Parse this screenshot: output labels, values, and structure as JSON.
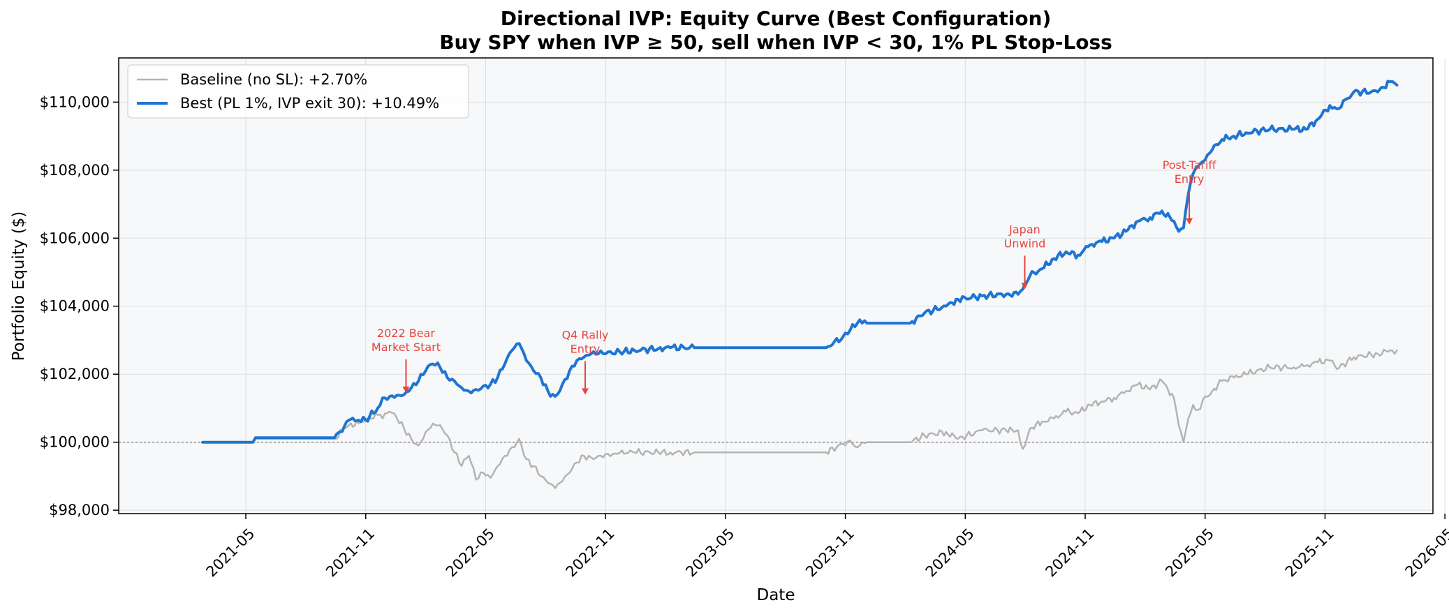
{
  "chart_data": {
    "type": "line",
    "title": "Directional IVP: Equity Curve (Best Configuration)",
    "subtitle": "Buy SPY when IVP ≥ 50, sell when IVP < 30, 1% PL Stop-Loss",
    "xlabel": "Date",
    "ylabel": "Portfolio Equity ($)",
    "ylim": [
      97900,
      111300
    ],
    "xlim": [
      2020.8,
      2026.28
    ],
    "grid": true,
    "legend_position": "upper-left",
    "reference_line": {
      "y": 100000,
      "style": "dashed",
      "color": "#555555"
    },
    "y_ticks": [
      {
        "value": 98000,
        "label": "$98,000"
      },
      {
        "value": 100000,
        "label": "$100,000"
      },
      {
        "value": 102000,
        "label": "$102,000"
      },
      {
        "value": 104000,
        "label": "$104,000"
      },
      {
        "value": 106000,
        "label": "$106,000"
      },
      {
        "value": 108000,
        "label": "$108,000"
      },
      {
        "value": 110000,
        "label": "$110,000"
      }
    ],
    "x_ticks": [
      {
        "value": 2021.33,
        "label": "2021-05"
      },
      {
        "value": 2021.83,
        "label": "2021-11"
      },
      {
        "value": 2022.33,
        "label": "2022-05"
      },
      {
        "value": 2022.83,
        "label": "2022-11"
      },
      {
        "value": 2023.33,
        "label": "2023-05"
      },
      {
        "value": 2023.83,
        "label": "2023-11"
      },
      {
        "value": 2024.33,
        "label": "2024-05"
      },
      {
        "value": 2024.83,
        "label": "2024-11"
      },
      {
        "value": 2025.33,
        "label": "2025-05"
      },
      {
        "value": 2025.83,
        "label": "2025-11"
      },
      {
        "value": 2026.33,
        "label": "2026-05"
      }
    ],
    "series": [
      {
        "name": "Baseline (no SL): +2.70%",
        "color": "#b3b3b3",
        "width": 2.5,
        "x": [
          2021.15,
          2021.36,
          2021.37,
          2021.7,
          2021.74,
          2021.76,
          2021.8,
          2021.83,
          2021.88,
          2021.9,
          2021.93,
          2021.96,
          2021.99,
          2022.02,
          2022.05,
          2022.08,
          2022.11,
          2022.14,
          2022.17,
          2022.2,
          2022.23,
          2022.26,
          2022.29,
          2022.32,
          2022.35,
          2022.38,
          2022.41,
          2022.44,
          2022.47,
          2022.5,
          2022.53,
          2022.56,
          2022.59,
          2022.62,
          2022.65,
          2022.68,
          2022.71,
          2022.74,
          2022.77,
          2022.8,
          2022.83,
          2022.86,
          2022.89,
          2022.95,
          2023.05,
          2023.1,
          2023.2,
          2023.5,
          2023.75,
          2023.82,
          2023.85,
          2023.88,
          2023.9,
          2023.92,
          2024.1,
          2024.16,
          2024.25,
          2024.3,
          2024.4,
          2024.5,
          2024.55,
          2024.57,
          2024.6,
          2024.65,
          2024.7,
          2024.75,
          2024.8,
          2024.85,
          2024.9,
          2024.95,
          2025.0,
          2025.05,
          2025.1,
          2025.15,
          2025.2,
          2025.22,
          2025.24,
          2025.26,
          2025.28,
          2025.3,
          2025.33,
          2025.36,
          2025.4,
          2025.45,
          2025.5,
          2025.6,
          2025.7,
          2025.75,
          2025.8,
          2025.85,
          2025.88,
          2025.95,
          2026.05,
          2026.1,
          2026.13
        ],
        "y": [
          100000,
          100000,
          100100,
          100100,
          100400,
          100500,
          100550,
          100650,
          100800,
          100700,
          100900,
          100700,
          100400,
          100100,
          99900,
          100300,
          100550,
          100500,
          100200,
          99700,
          99300,
          99600,
          98900,
          99100,
          98950,
          99300,
          99600,
          99850,
          100100,
          99500,
          99300,
          99000,
          98800,
          98650,
          98850,
          99100,
          99400,
          99600,
          99550,
          99600,
          99650,
          99650,
          99700,
          99700,
          99700,
          99700,
          99700,
          99700,
          99700,
          99950,
          100050,
          99850,
          100000,
          100000,
          100000,
          100200,
          100300,
          100100,
          100350,
          100350,
          100350,
          99800,
          100400,
          100600,
          100700,
          100900,
          100850,
          101100,
          101200,
          101300,
          101500,
          101700,
          101550,
          101800,
          101300,
          100500,
          100000,
          100700,
          101100,
          100950,
          101350,
          101500,
          101800,
          101900,
          102000,
          102200,
          102200,
          102250,
          102350,
          102400,
          102150,
          102500,
          102600,
          102700,
          102700
        ]
      },
      {
        "name": "Best (PL 1%, IVP exit 30): +10.49%",
        "color": "#1f75d1",
        "width": 4,
        "x": [
          2021.15,
          2021.36,
          2021.37,
          2021.7,
          2021.74,
          2021.76,
          2021.8,
          2021.83,
          2021.88,
          2021.9,
          2021.93,
          2021.96,
          2021.99,
          2022.02,
          2022.05,
          2022.08,
          2022.11,
          2022.14,
          2022.17,
          2022.2,
          2022.23,
          2022.26,
          2022.29,
          2022.32,
          2022.35,
          2022.38,
          2022.41,
          2022.44,
          2022.47,
          2022.5,
          2022.53,
          2022.56,
          2022.59,
          2022.62,
          2022.65,
          2022.68,
          2022.71,
          2022.74,
          2022.77,
          2022.8,
          2022.83,
          2022.86,
          2022.89,
          2022.95,
          2023.05,
          2023.1,
          2023.2,
          2023.5,
          2023.75,
          2023.82,
          2023.85,
          2023.88,
          2023.9,
          2023.92,
          2024.1,
          2024.16,
          2024.25,
          2024.3,
          2024.4,
          2024.5,
          2024.55,
          2024.57,
          2024.6,
          2024.65,
          2024.7,
          2024.75,
          2024.8,
          2024.85,
          2024.9,
          2024.95,
          2025.0,
          2025.05,
          2025.1,
          2025.15,
          2025.2,
          2025.22,
          2025.24,
          2025.26,
          2025.28,
          2025.3,
          2025.33,
          2025.36,
          2025.4,
          2025.45,
          2025.5,
          2025.6,
          2025.7,
          2025.75,
          2025.8,
          2025.85,
          2025.88,
          2025.95,
          2026.05,
          2026.1,
          2026.13
        ],
        "y": [
          100000,
          100000,
          100130,
          100130,
          100450,
          100650,
          100650,
          100650,
          101000,
          101300,
          101350,
          101380,
          101400,
          101600,
          101800,
          102100,
          102300,
          102200,
          101900,
          101800,
          101600,
          101500,
          101550,
          101650,
          101700,
          101900,
          102300,
          102700,
          102900,
          102400,
          102100,
          101900,
          101500,
          101350,
          101700,
          102100,
          102400,
          102500,
          102600,
          102600,
          102600,
          102600,
          102650,
          102700,
          102750,
          102780,
          102780,
          102780,
          102780,
          103100,
          103300,
          103500,
          103500,
          103500,
          103500,
          103800,
          104000,
          104200,
          104300,
          104350,
          104350,
          104500,
          104900,
          105100,
          105400,
          105600,
          105500,
          105800,
          105900,
          106000,
          106200,
          106500,
          106600,
          106800,
          106500,
          106200,
          106300,
          107300,
          107900,
          108100,
          108300,
          108600,
          108900,
          109000,
          109100,
          109200,
          109200,
          109200,
          109500,
          109900,
          109800,
          110300,
          110300,
          110600,
          110500
        ]
      }
    ],
    "annotations": [
      {
        "lines": [
          "2022 Bear",
          "Market Start"
        ],
        "x": 2021.998,
        "y": 101450
      },
      {
        "lines": [
          "Q4 Rally",
          "Entry"
        ],
        "x": 2022.745,
        "y": 101400
      },
      {
        "lines": [
          "Japan",
          "Unwind"
        ],
        "x": 2024.578,
        "y": 104500
      },
      {
        "lines": [
          "Post-Tariff",
          "Entry"
        ],
        "x": 2025.264,
        "y": 106400
      }
    ]
  }
}
